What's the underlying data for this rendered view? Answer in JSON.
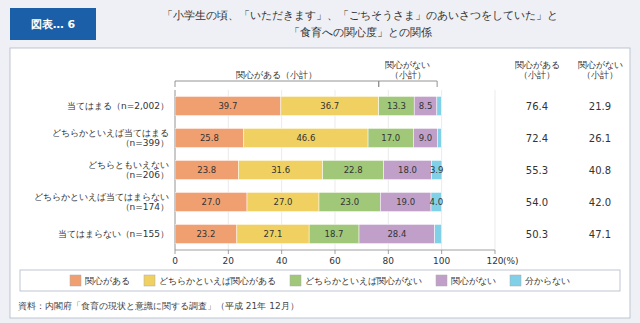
{
  "chart_data": {
    "type": "bar",
    "orientation": "horizontal",
    "stacked": true,
    "title": "「小学生の頃、「いただきます」、「ごちそうさま」のあいさつをしていた」と",
    "subtitle": "「食育への関心度」との関係",
    "figure_label": "図表… 6",
    "categories": [
      "当てはまる（n=2,002）",
      "どちらかといえば当てはまる\n（n=399）",
      "どちらともいえない\n（n=206）",
      "どちらかといえば当てはまらない\n（n=174）",
      "当てはまらない（n=155）"
    ],
    "series": [
      {
        "name": "関心がある",
        "color": "#F0A070",
        "values": [
          39.7,
          25.8,
          23.8,
          27.0,
          23.2
        ],
        "value_labels": [
          "39.7",
          "25.8",
          "23.8",
          "27.0",
          "23.2"
        ]
      },
      {
        "name": "どちらかといえば関心がある",
        "color": "#F0D060",
        "values": [
          36.7,
          46.6,
          31.6,
          27.0,
          27.1
        ],
        "value_labels": [
          "36.7",
          "46.6",
          "31.6",
          "27.0",
          "27.1"
        ]
      },
      {
        "name": "どちらかといえば関心がない",
        "color": "#A0C878",
        "values": [
          13.3,
          17.0,
          22.8,
          23.0,
          18.7
        ],
        "value_labels": [
          "13.3",
          "17.0",
          "22.8",
          "23.0",
          "18.7"
        ]
      },
      {
        "name": "関心がない",
        "color": "#C0A0C8",
        "values": [
          8.5,
          9.0,
          18.0,
          19.0,
          28.4
        ],
        "value_labels": [
          "8.5",
          "9.0",
          "18.0",
          "19.0",
          "28.4"
        ]
      },
      {
        "name": "分からない",
        "color": "#80D0E8",
        "values": [
          1.7,
          1.5,
          3.9,
          4.0,
          2.6
        ],
        "value_labels": [
          null,
          null,
          "3.9",
          "4.0",
          null
        ]
      }
    ],
    "summary": [
      {
        "name": "関心がある\n（小計）",
        "values": [
          76.4,
          72.4,
          55.3,
          54.0,
          50.3
        ],
        "value_labels": [
          "76.4",
          "72.4",
          "55.3",
          "54.0",
          "50.3"
        ]
      },
      {
        "name": "関心がない\n（小計）",
        "values": [
          21.9,
          26.1,
          40.8,
          42.0,
          47.1
        ],
        "value_labels": [
          "21.9",
          "26.1",
          "40.8",
          "42.0",
          "47.1"
        ]
      }
    ],
    "annotations": [
      {
        "text": "関心がある（小計）",
        "x": [
          0,
          76.4
        ]
      },
      {
        "text": "関心がない\n（小計）",
        "x": [
          76.4,
          98.3
        ]
      }
    ],
    "xlabel": "(%)",
    "xlim": [
      0,
      120
    ],
    "xticks": [
      0,
      20,
      40,
      60,
      80,
      100,
      120
    ],
    "grid": true,
    "data_labels": true,
    "legend": "bottom",
    "source": "資料：内閣府「食育の現状と意識に関する調査」（平成 21年 12月）"
  }
}
